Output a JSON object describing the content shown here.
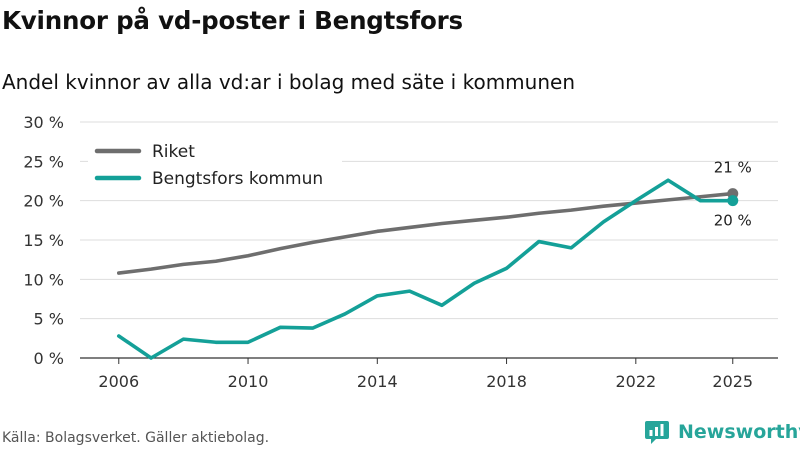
{
  "title": "Kvinnor på vd-poster i Bengtsfors",
  "subtitle": "Andel kvinnor av alla vd:ar i bolag med säte i kommunen",
  "source": "Källa: Bolagsverket. Gäller aktiebolag.",
  "brand": {
    "name": "Newsworthy",
    "icon": "newsworthy-logo-icon",
    "color": "#27a59a"
  },
  "chart_data": {
    "type": "line",
    "title": "Kvinnor på vd-poster i Bengtsfors",
    "xlabel": "",
    "ylabel": "",
    "x": [
      2006,
      2007,
      2008,
      2009,
      2010,
      2011,
      2012,
      2013,
      2014,
      2015,
      2016,
      2017,
      2018,
      2019,
      2020,
      2021,
      2022,
      2023,
      2024,
      2025
    ],
    "xlim": [
      2006,
      2025
    ],
    "ylim": [
      0,
      30
    ],
    "x_ticks": [
      2006,
      2010,
      2014,
      2018,
      2022,
      2025
    ],
    "y_ticks": [
      {
        "value": 0,
        "label": "0 %"
      },
      {
        "value": 5,
        "label": "5 %"
      },
      {
        "value": 10,
        "label": "10 %"
      },
      {
        "value": 15,
        "label": "15 %"
      },
      {
        "value": 20,
        "label": "20 %"
      },
      {
        "value": 25,
        "label": "25 %"
      },
      {
        "value": 30,
        "label": "30 %"
      }
    ],
    "grid": true,
    "legend_position": "top-left",
    "series": [
      {
        "name": "Riket",
        "color": "#6e6e6e",
        "values": [
          10.8,
          11.3,
          11.9,
          12.3,
          13.0,
          13.9,
          14.7,
          15.4,
          16.1,
          16.6,
          17.1,
          17.5,
          17.9,
          18.4,
          18.8,
          19.3,
          19.7,
          20.1,
          20.5,
          20.9
        ],
        "end_label": "21 %"
      },
      {
        "name": "Bengtsfors kommun",
        "color": "#14a098",
        "values": [
          2.8,
          0.0,
          2.4,
          2.0,
          2.0,
          3.9,
          3.8,
          5.6,
          7.9,
          8.5,
          6.7,
          9.5,
          11.4,
          14.8,
          14.0,
          17.3,
          20.0,
          22.6,
          20.0,
          20.0
        ],
        "end_label": "20 %"
      }
    ]
  }
}
